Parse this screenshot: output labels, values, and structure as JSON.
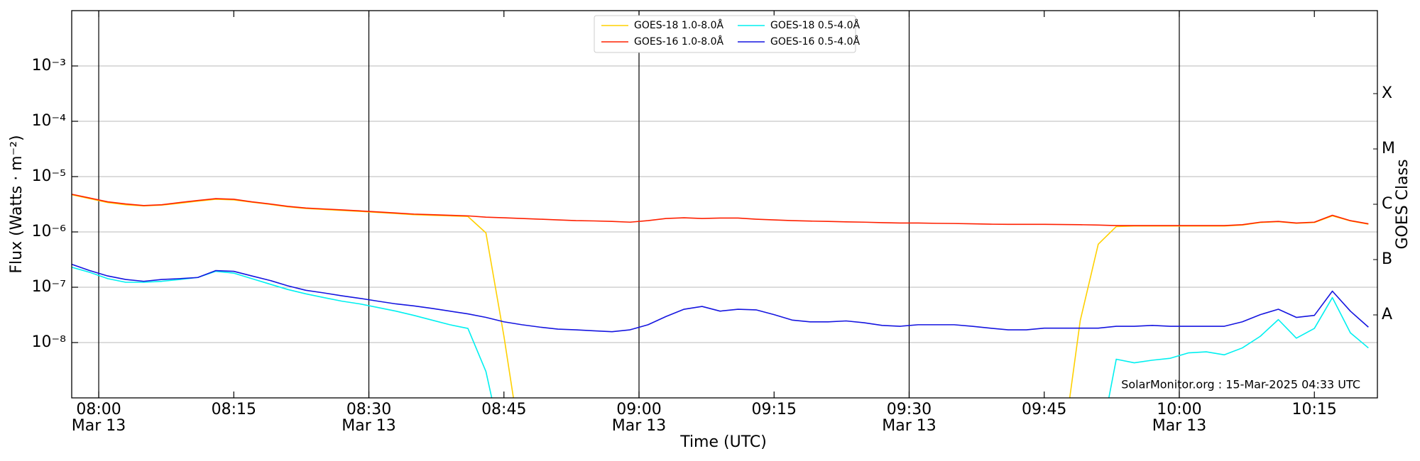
{
  "chart_data": {
    "type": "line",
    "xlabel": "Time (UTC)",
    "ylabel": "Flux (Watts · m⁻²)",
    "y2label": "GOES Class",
    "annotation": "SolarMonitor.org : 15-Mar-2025 04:33 UTC",
    "log_y": true,
    "grid": true,
    "legend": "upper center",
    "xlim": [
      "Mar 13 07:57",
      "Mar 13 10:22"
    ],
    "ylim": [
      1e-09,
      0.01
    ],
    "y2lim": [
      1e-09,
      0.01
    ],
    "xticks": [
      {
        "value": "Mar 13 08:00",
        "label": [
          "08:00",
          "Mar 13"
        ]
      },
      {
        "value": "Mar 13 08:15",
        "label": [
          "08:15"
        ]
      },
      {
        "value": "Mar 13 08:30",
        "label": [
          "08:30",
          "Mar 13"
        ]
      },
      {
        "value": "Mar 13 08:45",
        "label": [
          "08:45"
        ]
      },
      {
        "value": "Mar 13 09:00",
        "label": [
          "09:00",
          "Mar 13"
        ]
      },
      {
        "value": "Mar 13 09:15",
        "label": [
          "09:15"
        ]
      },
      {
        "value": "Mar 13 09:30",
        "label": [
          "09:30",
          "Mar 13"
        ]
      },
      {
        "value": "Mar 13 09:45",
        "label": [
          "09:45"
        ]
      },
      {
        "value": "Mar 13 10:00",
        "label": [
          "10:00",
          "Mar 13"
        ]
      },
      {
        "value": "Mar 13 10:15",
        "label": [
          "10:15"
        ]
      }
    ],
    "yticks": [
      {
        "value": 1e-08,
        "label": "10⁻⁸"
      },
      {
        "value": 1e-07,
        "label": "10⁻⁷"
      },
      {
        "value": 1e-06,
        "label": "10⁻⁶"
      },
      {
        "value": 1e-05,
        "label": "10⁻⁵"
      },
      {
        "value": 0.0001,
        "label": "10⁻⁴"
      },
      {
        "value": 0.001,
        "label": "10⁻³"
      }
    ],
    "y2ticks": [
      {
        "value": 3.162e-08,
        "label": "A"
      },
      {
        "value": 3.162e-07,
        "label": "B"
      },
      {
        "value": 3.162e-06,
        "label": "C"
      },
      {
        "value": 3.162e-05,
        "label": "M"
      },
      {
        "value": 0.0003162,
        "label": "X"
      }
    ],
    "x": [
      "Mar 13 07:57",
      "Mar 13 07:59",
      "Mar 13 08:01",
      "Mar 13 08:03",
      "Mar 13 08:05",
      "Mar 13 08:07",
      "Mar 13 08:09",
      "Mar 13 08:11",
      "Mar 13 08:13",
      "Mar 13 08:15",
      "Mar 13 08:17",
      "Mar 13 08:19",
      "Mar 13 08:21",
      "Mar 13 08:23",
      "Mar 13 08:25",
      "Mar 13 08:27",
      "Mar 13 08:29",
      "Mar 13 08:31",
      "Mar 13 08:33",
      "Mar 13 08:35",
      "Mar 13 08:37",
      "Mar 13 08:39",
      "Mar 13 08:41",
      "Mar 13 08:43",
      "Mar 13 08:45",
      "Mar 13 08:47",
      "Mar 13 08:49",
      "Mar 13 08:51",
      "Mar 13 08:53",
      "Mar 13 08:55",
      "Mar 13 08:57",
      "Mar 13 08:59",
      "Mar 13 09:01",
      "Mar 13 09:03",
      "Mar 13 09:05",
      "Mar 13 09:07",
      "Mar 13 09:09",
      "Mar 13 09:11",
      "Mar 13 09:13",
      "Mar 13 09:15",
      "Mar 13 09:17",
      "Mar 13 09:19",
      "Mar 13 09:21",
      "Mar 13 09:23",
      "Mar 13 09:25",
      "Mar 13 09:27",
      "Mar 13 09:29",
      "Mar 13 09:31",
      "Mar 13 09:33",
      "Mar 13 09:35",
      "Mar 13 09:37",
      "Mar 13 09:39",
      "Mar 13 09:41",
      "Mar 13 09:43",
      "Mar 13 09:45",
      "Mar 13 09:47",
      "Mar 13 09:49",
      "Mar 13 09:51",
      "Mar 13 09:53",
      "Mar 13 09:55",
      "Mar 13 09:57",
      "Mar 13 09:59",
      "Mar 13 10:01",
      "Mar 13 10:03",
      "Mar 13 10:05",
      "Mar 13 10:07",
      "Mar 13 10:09",
      "Mar 13 10:11",
      "Mar 13 10:13",
      "Mar 13 10:15",
      "Mar 13 10:17",
      "Mar 13 10:19",
      "Mar 13 10:21"
    ],
    "series": [
      {
        "name": "GOES-18 1.0-8.0Å",
        "color": "#ffd000",
        "values": [
          4.7e-06,
          4e-06,
          3.4e-06,
          3.1e-06,
          2.95e-06,
          3.05e-06,
          3.3e-06,
          3.6e-06,
          3.9e-06,
          3.8e-06,
          3.45e-06,
          3.15e-06,
          2.85e-06,
          2.65e-06,
          2.55e-06,
          2.45e-06,
          2.35e-06,
          2.25e-06,
          2.15e-06,
          2.05e-06,
          2e-06,
          1.95e-06,
          1.9e-06,
          9.6e-07,
          1.3e-08,
          1e-10,
          null,
          null,
          null,
          null,
          null,
          null,
          null,
          null,
          null,
          null,
          null,
          null,
          null,
          null,
          null,
          null,
          null,
          null,
          null,
          null,
          null,
          null,
          null,
          null,
          null,
          null,
          null,
          null,
          null,
          1e-10,
          2.5e-08,
          6e-07,
          1.25e-06,
          1.28e-06,
          1.28e-06,
          1.28e-06,
          1.28e-06,
          1.28e-06,
          1.28e-06,
          1.33e-06,
          1.48e-06,
          1.53e-06,
          1.43e-06,
          1.48e-06,
          1.95e-06,
          1.58e-06,
          1.38e-06
        ]
      },
      {
        "name": "GOES-16 1.0-8.0Å",
        "color": "#ff2000",
        "values": [
          4.8e-06,
          4.1e-06,
          3.5e-06,
          3.2e-06,
          3e-06,
          3.1e-06,
          3.4e-06,
          3.7e-06,
          4e-06,
          3.9e-06,
          3.5e-06,
          3.2e-06,
          2.9e-06,
          2.7e-06,
          2.6e-06,
          2.5e-06,
          2.4e-06,
          2.3e-06,
          2.2e-06,
          2.1e-06,
          2.05e-06,
          2e-06,
          1.95e-06,
          1.85e-06,
          1.8e-06,
          1.75e-06,
          1.7e-06,
          1.65e-06,
          1.6e-06,
          1.58e-06,
          1.55e-06,
          1.5e-06,
          1.6e-06,
          1.75e-06,
          1.8e-06,
          1.75e-06,
          1.78e-06,
          1.78e-06,
          1.7e-06,
          1.65e-06,
          1.6e-06,
          1.57e-06,
          1.55e-06,
          1.52e-06,
          1.5e-06,
          1.47e-06,
          1.45e-06,
          1.45e-06,
          1.43e-06,
          1.42e-06,
          1.4e-06,
          1.38e-06,
          1.37e-06,
          1.37e-06,
          1.37e-06,
          1.36e-06,
          1.35e-06,
          1.33e-06,
          1.3e-06,
          1.3e-06,
          1.3e-06,
          1.3e-06,
          1.3e-06,
          1.3e-06,
          1.3e-06,
          1.35e-06,
          1.5e-06,
          1.55e-06,
          1.45e-06,
          1.5e-06,
          2e-06,
          1.6e-06,
          1.4e-06
        ]
      },
      {
        "name": "GOES-18 0.5-4.0Å",
        "color": "#00f0f0",
        "values": [
          2.3e-07,
          1.86e-07,
          1.43e-07,
          1.23e-07,
          1.23e-07,
          1.28e-07,
          1.38e-07,
          1.5e-07,
          1.94e-07,
          1.8e-07,
          1.43e-07,
          1.14e-07,
          9.1e-08,
          7.6e-08,
          6.5e-08,
          5.6e-08,
          5e-08,
          4.3e-08,
          3.7e-08,
          3.1e-08,
          2.55e-08,
          2.1e-08,
          1.8e-08,
          3e-09,
          1e-10,
          null,
          null,
          null,
          null,
          null,
          null,
          null,
          null,
          null,
          null,
          null,
          null,
          null,
          null,
          null,
          null,
          null,
          null,
          null,
          null,
          null,
          null,
          null,
          null,
          null,
          null,
          null,
          null,
          null,
          null,
          null,
          null,
          1e-10,
          5e-09,
          4.3e-09,
          4.8e-09,
          5.2e-09,
          6.5e-09,
          6.8e-09,
          6e-09,
          8e-09,
          1.3e-08,
          2.6e-08,
          1.2e-08,
          1.8e-08,
          6.5e-08,
          1.5e-08,
          8e-09
        ]
      },
      {
        "name": "GOES-16 0.5-4.0Å",
        "color": "#1515e0",
        "values": [
          2.6e-07,
          2e-07,
          1.6e-07,
          1.38e-07,
          1.28e-07,
          1.38e-07,
          1.43e-07,
          1.5e-07,
          2e-07,
          1.94e-07,
          1.6e-07,
          1.33e-07,
          1.06e-07,
          8.8e-08,
          7.9e-08,
          7e-08,
          6.3e-08,
          5.6e-08,
          5e-08,
          4.6e-08,
          4.15e-08,
          3.7e-08,
          3.3e-08,
          2.85e-08,
          2.37e-08,
          2.1e-08,
          1.9e-08,
          1.75e-08,
          1.7e-08,
          1.63e-08,
          1.57e-08,
          1.7e-08,
          2.1e-08,
          2.96e-08,
          4e-08,
          4.5e-08,
          3.7e-08,
          4e-08,
          3.9e-08,
          3.2e-08,
          2.55e-08,
          2.37e-08,
          2.37e-08,
          2.46e-08,
          2.28e-08,
          2.04e-08,
          1.97e-08,
          2.1e-08,
          2.1e-08,
          2.1e-08,
          1.97e-08,
          1.82e-08,
          1.7e-08,
          1.7e-08,
          1.82e-08,
          1.82e-08,
          1.82e-08,
          1.82e-08,
          1.97e-08,
          1.97e-08,
          2.04e-08,
          1.97e-08,
          1.97e-08,
          1.97e-08,
          1.97e-08,
          2.37e-08,
          3.2e-08,
          4e-08,
          2.85e-08,
          3.1e-08,
          8.5e-08,
          3.7e-08,
          1.9e-08
        ]
      }
    ]
  }
}
